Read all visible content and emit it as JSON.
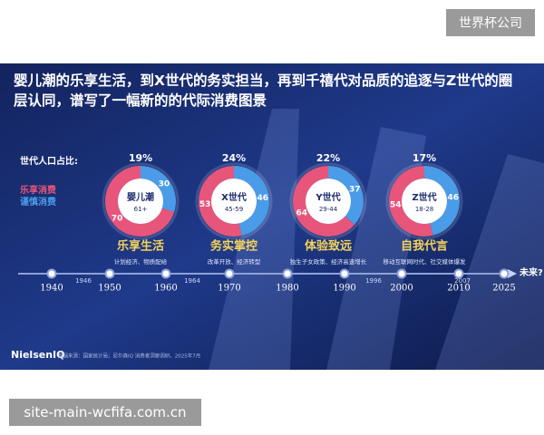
{
  "watermark": "世界杯公司",
  "title": "婴儿潮的乐享生活，到X世代的务实担当，再到千禧代对品质的追逐与Z世代的圈层认同，谱写了一幅新的的代际消费图景",
  "share_label": "世代人口占比:",
  "legend": [
    {
      "name": "乐享消费",
      "color": "#e8557a"
    },
    {
      "name": "谨慎消费",
      "color": "#4a9be8"
    }
  ],
  "generations": [
    {
      "share": "19%",
      "name": "婴儿潮",
      "ages": "61+",
      "enjoy": 70,
      "cautious": 30,
      "heading": "乐享生活",
      "context": "计划经济、物质配给"
    },
    {
      "share": "24%",
      "name": "X世代",
      "ages": "45-59",
      "enjoy": 53,
      "cautious": 46,
      "heading": "务实掌控",
      "context": "改革开放、经济转型"
    },
    {
      "share": "22%",
      "name": "Y世代",
      "ages": "29-44",
      "enjoy": 64,
      "cautious": 37,
      "heading": "体验致远",
      "context": "独生子女政策、经济高速增长"
    },
    {
      "share": "17%",
      "name": "Z世代",
      "ages": "18-28",
      "enjoy": 54,
      "cautious": 46,
      "heading": "自我代言",
      "context": "移动互联网时代、社交媒体爆发"
    }
  ],
  "timeline": {
    "years": [
      "1940",
      "1950",
      "1960",
      "1970",
      "1980",
      "1990",
      "2000",
      "2010",
      "2025"
    ],
    "splits": [
      "1946",
      "1964",
      "1996",
      "2007"
    ],
    "future": "未来?"
  },
  "brand": "NielsenIQ",
  "source": "数据来源：国家统计局；尼尔森IQ 消费者洞察调研，2025年7月",
  "url": "site-main-wcfifa.com.cn"
}
